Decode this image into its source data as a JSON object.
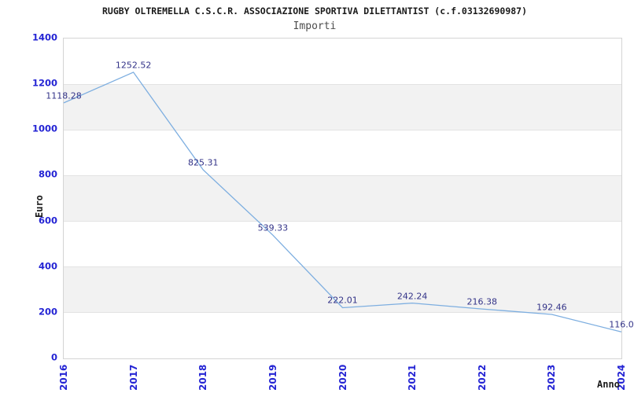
{
  "chart_data": {
    "type": "line",
    "title": "RUGBY OLTREMELLA C.S.C.R. ASSOCIAZIONE SPORTIVA DILETTANTIST (c.f.03132690987)",
    "subtitle": "Importi",
    "xlabel": "Anno",
    "ylabel": "Euro",
    "categories": [
      "2016",
      "2017",
      "2018",
      "2019",
      "2020",
      "2021",
      "2022",
      "2023",
      "2024"
    ],
    "series": [
      {
        "name": "Importi",
        "values": [
          1118.28,
          1252.52,
          825.31,
          539.33,
          222.01,
          242.24,
          216.38,
          192.46,
          116.0
        ]
      }
    ],
    "point_labels": [
      "1118.28",
      "1252.52",
      "825.31",
      "539.33",
      "222.01",
      "242.24",
      "216.38",
      "192.46",
      "116.0"
    ],
    "ylim": [
      0,
      1400
    ],
    "yticks": [
      0,
      200,
      400,
      600,
      800,
      1000,
      1200,
      1400
    ],
    "grid": "alternating horizontal gray bands every 200 units",
    "legend_position": "none",
    "colors": {
      "line": "#7daee0",
      "tick_label": "#2424d4",
      "point_label": "#333388",
      "band": "#f2f2f2",
      "grid_line": "#e3e3e3",
      "plot_border": "#d4d4d4",
      "title": "#1a1a1a",
      "subtitle": "#4d4d4d",
      "axis_title": "#1a1a1a",
      "background": "#ffffff"
    }
  }
}
